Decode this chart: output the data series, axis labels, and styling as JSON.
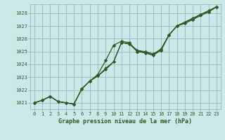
{
  "xlabel": "Graphe pression niveau de la mer (hPa)",
  "background_color": "#cce8e8",
  "grid_color": "#9bbfbf",
  "line_color": "#2d5a27",
  "text_color": "#2d5a27",
  "ylim": [
    1020.5,
    1028.7
  ],
  "xlim": [
    -0.5,
    23.5
  ],
  "yticks": [
    1021,
    1022,
    1023,
    1024,
    1025,
    1026,
    1027,
    1028
  ],
  "xticks": [
    0,
    1,
    2,
    3,
    4,
    5,
    6,
    7,
    8,
    9,
    10,
    11,
    12,
    13,
    14,
    15,
    16,
    17,
    18,
    19,
    20,
    21,
    22,
    23
  ],
  "series": [
    [
      1021.0,
      1021.2,
      1021.5,
      1021.1,
      1021.0,
      1020.9,
      1022.1,
      1022.7,
      1023.2,
      1024.3,
      1025.5,
      1025.8,
      1025.7,
      1025.0,
      1025.0,
      1024.8,
      1025.1,
      1026.3,
      1027.0,
      1027.2,
      1027.5,
      1027.9,
      1028.1,
      1028.5
    ],
    [
      1021.0,
      1021.2,
      1021.5,
      1021.1,
      1021.0,
      1020.9,
      1022.1,
      1022.7,
      1023.1,
      1023.7,
      1024.2,
      1025.7,
      1025.6,
      1025.0,
      1024.9,
      1024.7,
      1025.1,
      1026.3,
      1027.0,
      1027.3,
      1027.5,
      1027.8,
      1028.1,
      1028.5
    ],
    [
      1021.0,
      1021.2,
      1021.5,
      1021.1,
      1021.0,
      1020.9,
      1022.1,
      1022.7,
      1023.1,
      1023.6,
      1024.2,
      1025.7,
      1025.6,
      1025.0,
      1024.9,
      1024.7,
      1025.2,
      1026.3,
      1027.0,
      1027.3,
      1027.6,
      1027.9,
      1028.1,
      1028.5
    ],
    [
      1021.0,
      1021.2,
      1021.5,
      1021.1,
      1021.0,
      1020.9,
      1022.1,
      1022.7,
      1023.1,
      1023.6,
      1024.2,
      1025.7,
      1025.6,
      1025.1,
      1024.9,
      1024.8,
      1025.2,
      1026.3,
      1027.0,
      1027.3,
      1027.6,
      1027.9,
      1028.2,
      1028.5
    ],
    [
      1021.0,
      1021.2,
      1021.5,
      1021.1,
      1021.0,
      1020.9,
      1022.1,
      1022.7,
      1023.1,
      1023.6,
      1024.2,
      1025.7,
      1025.6,
      1025.1,
      1025.0,
      1024.8,
      1025.2,
      1026.3,
      1027.0,
      1027.3,
      1027.6,
      1027.9,
      1028.2,
      1028.5
    ]
  ]
}
